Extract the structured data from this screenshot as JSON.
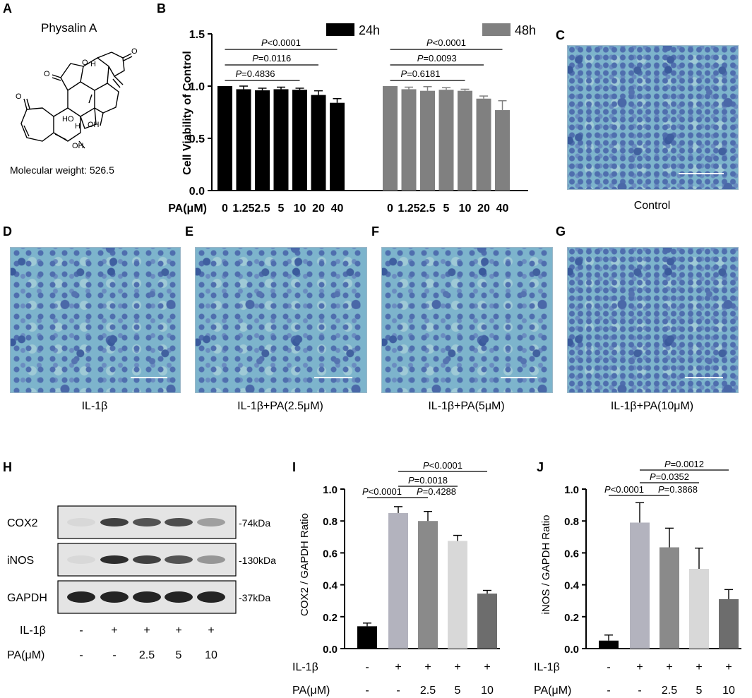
{
  "panels": {
    "A": {
      "label": "A",
      "title": "Physalin A",
      "molecular_weight": "Molecular weight: 526.5",
      "structure_labels": [
        "O",
        "O",
        "O",
        "O",
        "H",
        "HO",
        "OH",
        "H",
        "OH"
      ]
    },
    "B": {
      "label": "B"
    },
    "C": {
      "label": "C",
      "caption": "Control"
    },
    "D": {
      "label": "D",
      "caption": "IL-1β"
    },
    "E": {
      "label": "E",
      "caption": "IL-1β+PA(2.5μM)"
    },
    "F": {
      "label": "F",
      "caption": "IL-1β+PA(5μM)"
    },
    "G": {
      "label": "G",
      "caption": "IL-1β+PA(10μM)"
    },
    "H": {
      "label": "H",
      "rows": [
        {
          "protein": "COX2",
          "size": "-74kDa",
          "intensity": [
            0.05,
            0.85,
            0.75,
            0.78,
            0.35
          ]
        },
        {
          "protein": "iNOS",
          "size": "-130kDa",
          "intensity": [
            0.05,
            0.95,
            0.85,
            0.75,
            0.4
          ]
        },
        {
          "protein": "GAPDH",
          "size": "-37kDa",
          "intensity": [
            1,
            1,
            1,
            1,
            1
          ]
        }
      ],
      "il1b_label": "IL-1β",
      "il1b_values": [
        "-",
        "+",
        "+",
        "+",
        "+"
      ],
      "pa_label": "PA(μM)",
      "pa_values": [
        "-",
        "-",
        "2.5",
        "5",
        "10"
      ]
    },
    "I": {
      "label": "I"
    },
    "J": {
      "label": "J"
    }
  },
  "chart_data": [
    {
      "id": "B",
      "type": "bar",
      "ylabel": "Cell Viability of Control",
      "xlabel": "PA(μM)",
      "ylim": [
        0,
        1.5
      ],
      "yticks": [
        "0.0",
        "0.5",
        "1.0",
        "1.5"
      ],
      "categories": [
        "0",
        "1.25",
        "2.5",
        "5",
        "10",
        "20",
        "40"
      ],
      "legend": [
        "24h",
        "48h"
      ],
      "colors": [
        "#000000",
        "#808080"
      ],
      "series": [
        {
          "name": "24h",
          "values": [
            1.0,
            0.97,
            0.96,
            0.97,
            0.965,
            0.915,
            0.84
          ],
          "errors": [
            0.0,
            0.03,
            0.02,
            0.02,
            0.015,
            0.04,
            0.04
          ]
        },
        {
          "name": "48h",
          "values": [
            1.0,
            0.97,
            0.955,
            0.965,
            0.955,
            0.88,
            0.77
          ],
          "errors": [
            0.0,
            0.02,
            0.04,
            0.02,
            0.015,
            0.025,
            0.09
          ]
        }
      ],
      "significance": [
        {
          "series": "24h",
          "text": "P<0.0001"
        },
        {
          "series": "24h",
          "text": "P=0.0116"
        },
        {
          "series": "24h",
          "text": "P=0.4836"
        },
        {
          "series": "48h",
          "text": "P<0.0001"
        },
        {
          "series": "48h",
          "text": "P=0.0093"
        },
        {
          "series": "48h",
          "text": "P=0.6181"
        }
      ]
    },
    {
      "id": "I",
      "type": "bar",
      "ylabel": "COX2 / GAPDH Ratio",
      "ylim": [
        0,
        1.0
      ],
      "yticks": [
        "0.0",
        "0.2",
        "0.4",
        "0.6",
        "0.8",
        "1.0"
      ],
      "values": [
        0.14,
        0.85,
        0.8,
        0.675,
        0.345
      ],
      "errors": [
        0.02,
        0.04,
        0.06,
        0.035,
        0.02
      ],
      "colors": [
        "#000000",
        "#b3b3be",
        "#8a8a8a",
        "#d8d8d8",
        "#6d6d6d"
      ],
      "il1b_label": "IL-1β",
      "il1b_values": [
        "-",
        "+",
        "+",
        "+",
        "+"
      ],
      "pa_label": "PA(μM)",
      "pa_values": [
        "-",
        "-",
        "2.5",
        "5",
        "10"
      ],
      "significance": [
        {
          "text": "P<0.0001"
        },
        {
          "text": "P=0.4288"
        },
        {
          "text": "P=0.0018"
        },
        {
          "text": "P<0.0001"
        }
      ]
    },
    {
      "id": "J",
      "type": "bar",
      "ylabel": "iNOS / GAPDH Ratio",
      "ylim": [
        0,
        1.0
      ],
      "yticks": [
        "0.0",
        "0.2",
        "0.4",
        "0.6",
        "0.8",
        "1.0"
      ],
      "values": [
        0.05,
        0.79,
        0.635,
        0.5,
        0.31
      ],
      "errors": [
        0.035,
        0.125,
        0.12,
        0.13,
        0.06
      ],
      "colors": [
        "#000000",
        "#b3b3be",
        "#8a8a8a",
        "#d8d8d8",
        "#6d6d6d"
      ],
      "il1b_label": "IL-1β",
      "il1b_values": [
        "-",
        "+",
        "+",
        "+",
        "+"
      ],
      "pa_label": "PA(μM)",
      "pa_values": [
        "-",
        "-",
        "2.5",
        "5",
        "10"
      ],
      "significance": [
        {
          "text": "P<0.0001"
        },
        {
          "text": "P=0.3868"
        },
        {
          "text": "P=0.0352"
        },
        {
          "text": "P=0.0012"
        }
      ]
    }
  ]
}
